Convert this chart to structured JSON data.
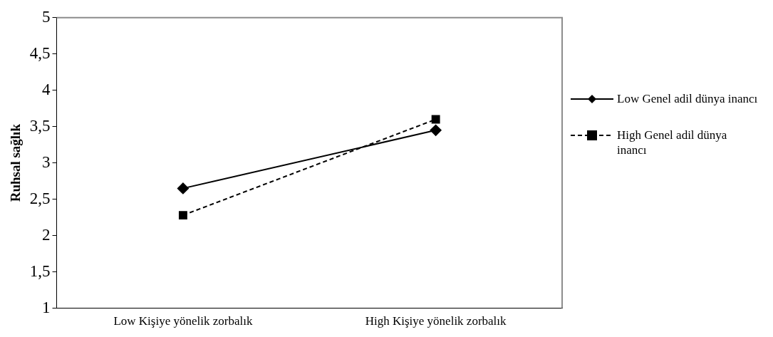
{
  "chart_data": {
    "type": "line",
    "ylabel": "Ruhsal sağlık",
    "categories": [
      "Low Kişiye yönelik zorbalık",
      "High Kişiye yönelik zorbalık"
    ],
    "ylim": [
      1,
      5
    ],
    "yticks": [
      1,
      {
        "value": 1.5,
        "label": "1,5"
      },
      2,
      {
        "value": 2.5,
        "label": "2,5"
      },
      3,
      {
        "value": 3.5,
        "label": "3,5"
      },
      4,
      {
        "value": 4.5,
        "label": "4,5"
      },
      5
    ],
    "series": [
      {
        "name": "Low Genel adil dünya inancı",
        "color": "#000000",
        "values": [
          2.65,
          3.45
        ],
        "marker": "diamond",
        "line_style": "solid"
      },
      {
        "name": "High Genel adil dünya inancı",
        "color": "#000000",
        "values": [
          2.28,
          3.6
        ],
        "marker": "square",
        "line_style": "dashed"
      }
    ],
    "grid": false,
    "legend": "right"
  }
}
